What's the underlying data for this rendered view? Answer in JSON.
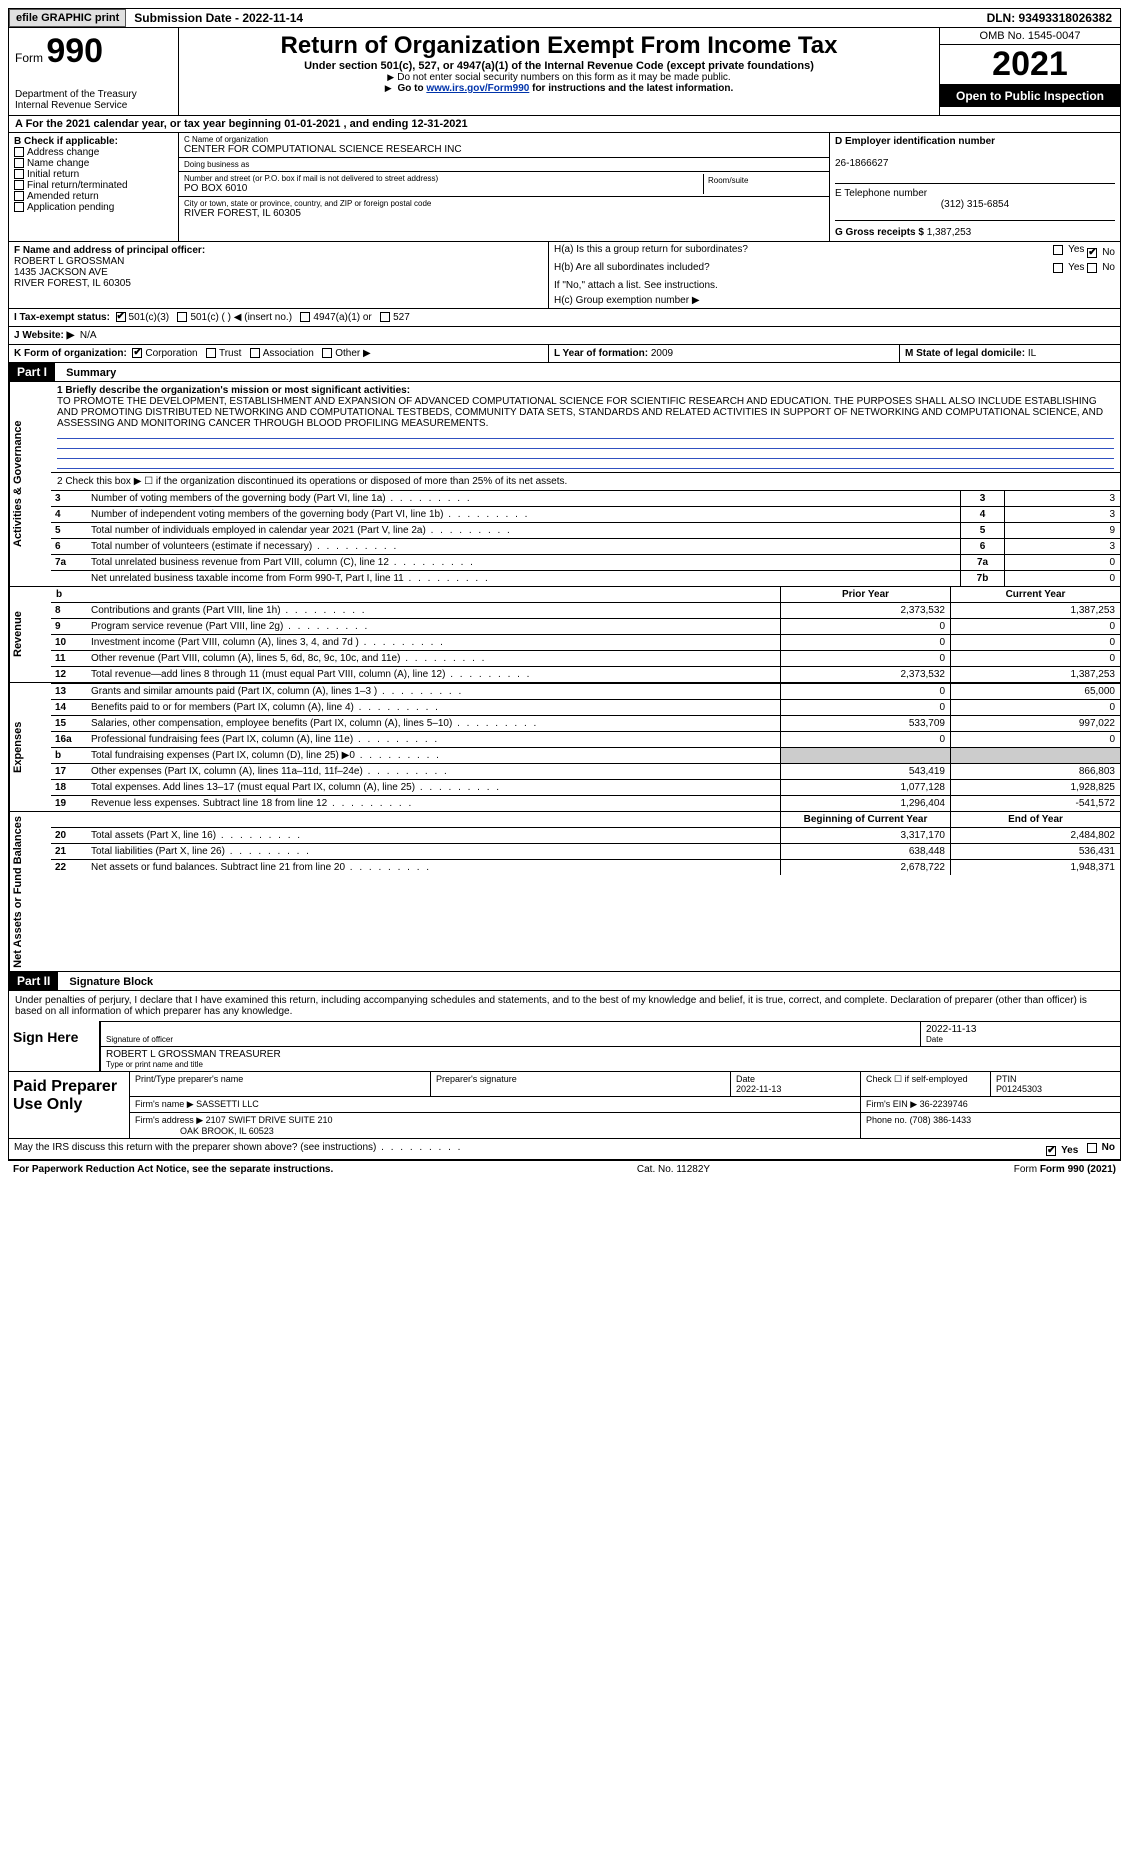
{
  "topbar": {
    "efile": "efile GRAPHIC print",
    "submission": "Submission Date - 2022-11-14",
    "dln": "DLN: 93493318026382"
  },
  "header": {
    "form_label": "Form",
    "form_number": "990",
    "dept": "Department of the Treasury Internal Revenue Service",
    "title": "Return of Organization Exempt From Income Tax",
    "subtitle": "Under section 501(c), 527, or 4947(a)(1) of the Internal Revenue Code (except private foundations)",
    "note1": "Do not enter social security numbers on this form as it may be made public.",
    "note2_pre": "Go to ",
    "note2_link": "www.irs.gov/Form990",
    "note2_post": " for instructions and the latest information.",
    "omb": "OMB No. 1545-0047",
    "year": "2021",
    "openpub": "Open to Public Inspection"
  },
  "rowA": "A For the 2021 calendar year, or tax year beginning 01-01-2021   , and ending 12-31-2021",
  "B": {
    "label": "B Check if applicable:",
    "items": [
      "Address change",
      "Name change",
      "Initial return",
      "Final return/terminated",
      "Amended return",
      "Application pending"
    ]
  },
  "C": {
    "name_label": "C Name of organization",
    "name": "CENTER FOR COMPUTATIONAL SCIENCE RESEARCH INC",
    "dba_label": "Doing business as",
    "dba": "",
    "street_label": "Number and street (or P.O. box if mail is not delivered to street address)",
    "street": "PO BOX 6010",
    "room_label": "Room/suite",
    "room": "",
    "city_label": "City or town, state or province, country, and ZIP or foreign postal code",
    "city": "RIVER FOREST, IL  60305"
  },
  "D": {
    "label": "D Employer identification number",
    "value": "26-1866627"
  },
  "E": {
    "label": "E Telephone number",
    "value": "(312) 315-6854"
  },
  "G": {
    "label": "G Gross receipts $",
    "value": "1,387,253"
  },
  "F": {
    "label": "F  Name and address of principal officer:",
    "name": "ROBERT L GROSSMAN",
    "addr1": "1435 JACKSON AVE",
    "addr2": "RIVER FOREST, IL  60305"
  },
  "H": {
    "a": "H(a)  Is this a group return for subordinates?",
    "b": "H(b)  Are all subordinates included?",
    "b_note": "If \"No,\" attach a list. See instructions.",
    "c": "H(c)  Group exemption number ▶",
    "yes": "Yes",
    "no": "No"
  },
  "I": {
    "label": "I  Tax-exempt status:",
    "opts": [
      "501(c)(3)",
      "501(c) (  ) ◀ (insert no.)",
      "4947(a)(1) or",
      "527"
    ]
  },
  "J": {
    "label": "J  Website: ▶",
    "value": "N/A"
  },
  "K": {
    "label": "K Form of organization:",
    "opts": [
      "Corporation",
      "Trust",
      "Association",
      "Other ▶"
    ]
  },
  "L": {
    "label": "L Year of formation:",
    "value": "2009"
  },
  "M": {
    "label": "M State of legal domicile:",
    "value": "IL"
  },
  "partI": {
    "hdr": "Part I",
    "title": "Summary"
  },
  "mission": {
    "label": "1  Briefly describe the organization's mission or most significant activities:",
    "text": "TO PROMOTE THE DEVELOPMENT, ESTABLISHMENT AND EXPANSION OF ADVANCED COMPUTATIONAL SCIENCE FOR SCIENTIFIC RESEARCH AND EDUCATION. THE PURPOSES SHALL ALSO INCLUDE ESTABLISHING AND PROMOTING DISTRIBUTED NETWORKING AND COMPUTATIONAL TESTBEDS, COMMUNITY DATA SETS, STANDARDS AND RELATED ACTIVITIES IN SUPPORT OF NETWORKING AND COMPUTATIONAL SCIENCE, AND ASSESSING AND MONITORING CANCER THROUGH BLOOD PROFILING MEASUREMENTS."
  },
  "line2": "2  Check this box ▶ ☐  if the organization discontinued its operations or disposed of more than 25% of its net assets.",
  "govLines": [
    {
      "n": "3",
      "d": "Number of voting members of the governing body (Part VI, line 1a)",
      "b": "3",
      "v": "3"
    },
    {
      "n": "4",
      "d": "Number of independent voting members of the governing body (Part VI, line 1b)",
      "b": "4",
      "v": "3"
    },
    {
      "n": "5",
      "d": "Total number of individuals employed in calendar year 2021 (Part V, line 2a)",
      "b": "5",
      "v": "9"
    },
    {
      "n": "6",
      "d": "Total number of volunteers (estimate if necessary)",
      "b": "6",
      "v": "3"
    },
    {
      "n": "7a",
      "d": "Total unrelated business revenue from Part VIII, column (C), line 12",
      "b": "7a",
      "v": "0"
    },
    {
      "n": "",
      "d": "Net unrelated business taxable income from Form 990-T, Part I, line 11",
      "b": "7b",
      "v": "0"
    }
  ],
  "side_labels": {
    "ag": "Activities & Governance",
    "rev": "Revenue",
    "exp": "Expenses",
    "na": "Net Assets or Fund Balances"
  },
  "col_hdrs": {
    "prior": "Prior Year",
    "current": "Current Year",
    "begin": "Beginning of Current Year",
    "end": "End of Year",
    "blank": "b"
  },
  "revenue": [
    {
      "n": "8",
      "d": "Contributions and grants (Part VIII, line 1h)",
      "p": "2,373,532",
      "c": "1,387,253"
    },
    {
      "n": "9",
      "d": "Program service revenue (Part VIII, line 2g)",
      "p": "0",
      "c": "0"
    },
    {
      "n": "10",
      "d": "Investment income (Part VIII, column (A), lines 3, 4, and 7d )",
      "p": "0",
      "c": "0"
    },
    {
      "n": "11",
      "d": "Other revenue (Part VIII, column (A), lines 5, 6d, 8c, 9c, 10c, and 11e)",
      "p": "0",
      "c": "0"
    },
    {
      "n": "12",
      "d": "Total revenue—add lines 8 through 11 (must equal Part VIII, column (A), line 12)",
      "p": "2,373,532",
      "c": "1,387,253"
    }
  ],
  "expenses": [
    {
      "n": "13",
      "d": "Grants and similar amounts paid (Part IX, column (A), lines 1–3 )",
      "p": "0",
      "c": "65,000"
    },
    {
      "n": "14",
      "d": "Benefits paid to or for members (Part IX, column (A), line 4)",
      "p": "0",
      "c": "0"
    },
    {
      "n": "15",
      "d": "Salaries, other compensation, employee benefits (Part IX, column (A), lines 5–10)",
      "p": "533,709",
      "c": "997,022"
    },
    {
      "n": "16a",
      "d": "Professional fundraising fees (Part IX, column (A), line 11e)",
      "p": "0",
      "c": "0"
    },
    {
      "n": "b",
      "d": "Total fundraising expenses (Part IX, column (D), line 25) ▶0",
      "p": "",
      "c": "",
      "gray": true
    },
    {
      "n": "17",
      "d": "Other expenses (Part IX, column (A), lines 11a–11d, 11f–24e)",
      "p": "543,419",
      "c": "866,803"
    },
    {
      "n": "18",
      "d": "Total expenses. Add lines 13–17 (must equal Part IX, column (A), line 25)",
      "p": "1,077,128",
      "c": "1,928,825"
    },
    {
      "n": "19",
      "d": "Revenue less expenses. Subtract line 18 from line 12",
      "p": "1,296,404",
      "c": "-541,572"
    }
  ],
  "netassets": [
    {
      "n": "20",
      "d": "Total assets (Part X, line 16)",
      "p": "3,317,170",
      "c": "2,484,802"
    },
    {
      "n": "21",
      "d": "Total liabilities (Part X, line 26)",
      "p": "638,448",
      "c": "536,431"
    },
    {
      "n": "22",
      "d": "Net assets or fund balances. Subtract line 21 from line 20",
      "p": "2,678,722",
      "c": "1,948,371"
    }
  ],
  "partII": {
    "hdr": "Part II",
    "title": "Signature Block"
  },
  "sig": {
    "perjury": "Under penalties of perjury, I declare that I have examined this return, including accompanying schedules and statements, and to the best of my knowledge and belief, it is true, correct, and complete. Declaration of preparer (other than officer) is based on all information of which preparer has any knowledge.",
    "sign_here": "Sign Here",
    "sig_officer": "Signature of officer",
    "date": "2022-11-13",
    "date_lbl": "Date",
    "officer_name": "ROBERT L GROSSMAN  TREASURER",
    "type_name": "Type or print name and title"
  },
  "prep": {
    "label": "Paid Preparer Use Only",
    "h_name": "Print/Type preparer's name",
    "h_sig": "Preparer's signature",
    "h_date": "Date",
    "date": "2022-11-13",
    "check": "Check ☐ if self-employed",
    "ptin_lbl": "PTIN",
    "ptin": "P01245303",
    "firm_name_lbl": "Firm's name  ▶",
    "firm_name": "SASSETTI LLC",
    "firm_ein_lbl": "Firm's EIN ▶",
    "firm_ein": "36-2239746",
    "firm_addr_lbl": "Firm's address ▶",
    "firm_addr1": "2107 SWIFT DRIVE SUITE 210",
    "firm_addr2": "OAK BROOK, IL  60523",
    "phone_lbl": "Phone no.",
    "phone": "(708) 386-1433"
  },
  "discuss": {
    "q": "May the IRS discuss this return with the preparer shown above? (see instructions)",
    "yes": "Yes",
    "no": "No"
  },
  "footer": {
    "pra": "For Paperwork Reduction Act Notice, see the separate instructions.",
    "cat": "Cat. No. 11282Y",
    "form": "Form 990 (2021)"
  },
  "colors": {
    "link": "#0033aa",
    "black": "#000000",
    "gray": "#cccccc"
  }
}
